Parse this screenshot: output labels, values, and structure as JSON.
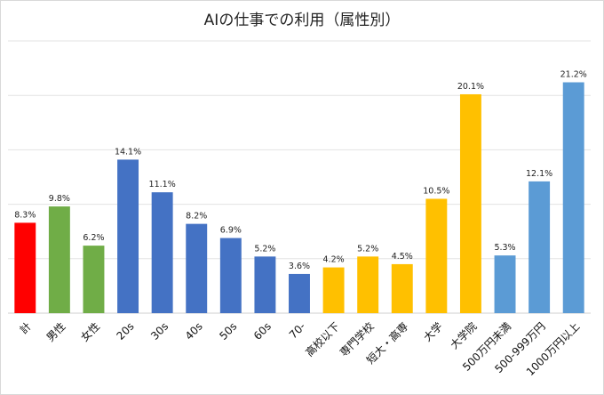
{
  "chart_data": {
    "type": "bar",
    "title": "AIの仕事での利用（属性別）",
    "xlabel": "",
    "ylabel": "",
    "ylim": [
      0,
      25
    ],
    "grid": true,
    "legend": "none",
    "categories": [
      "計",
      "男性",
      "女性",
      "20s",
      "30s",
      "40s",
      "50s",
      "60s",
      "70-",
      "高校以下",
      "専門学校",
      "短大・高専",
      "大学",
      "大学院",
      "500万円未満",
      "500-999万円",
      "1000万円以上"
    ],
    "values": [
      8.3,
      9.8,
      6.2,
      14.1,
      11.1,
      8.2,
      6.9,
      5.2,
      3.6,
      4.2,
      5.2,
      4.5,
      10.5,
      20.1,
      5.3,
      12.1,
      21.2
    ],
    "value_labels": [
      "8.3%",
      "9.8%",
      "6.2%",
      "14.1%",
      "11.1%",
      "8.2%",
      "6.9%",
      "5.2%",
      "3.6%",
      "4.2%",
      "5.2%",
      "4.5%",
      "10.5%",
      "20.1%",
      "5.3%",
      "12.1%",
      "21.2%"
    ],
    "colors": [
      "#ff0000",
      "#70ad47",
      "#70ad47",
      "#4472c4",
      "#4472c4",
      "#4472c4",
      "#4472c4",
      "#4472c4",
      "#4472c4",
      "#ffc000",
      "#ffc000",
      "#ffc000",
      "#ffc000",
      "#ffc000",
      "#5b9bd5",
      "#5b9bd5",
      "#5b9bd5"
    ]
  }
}
